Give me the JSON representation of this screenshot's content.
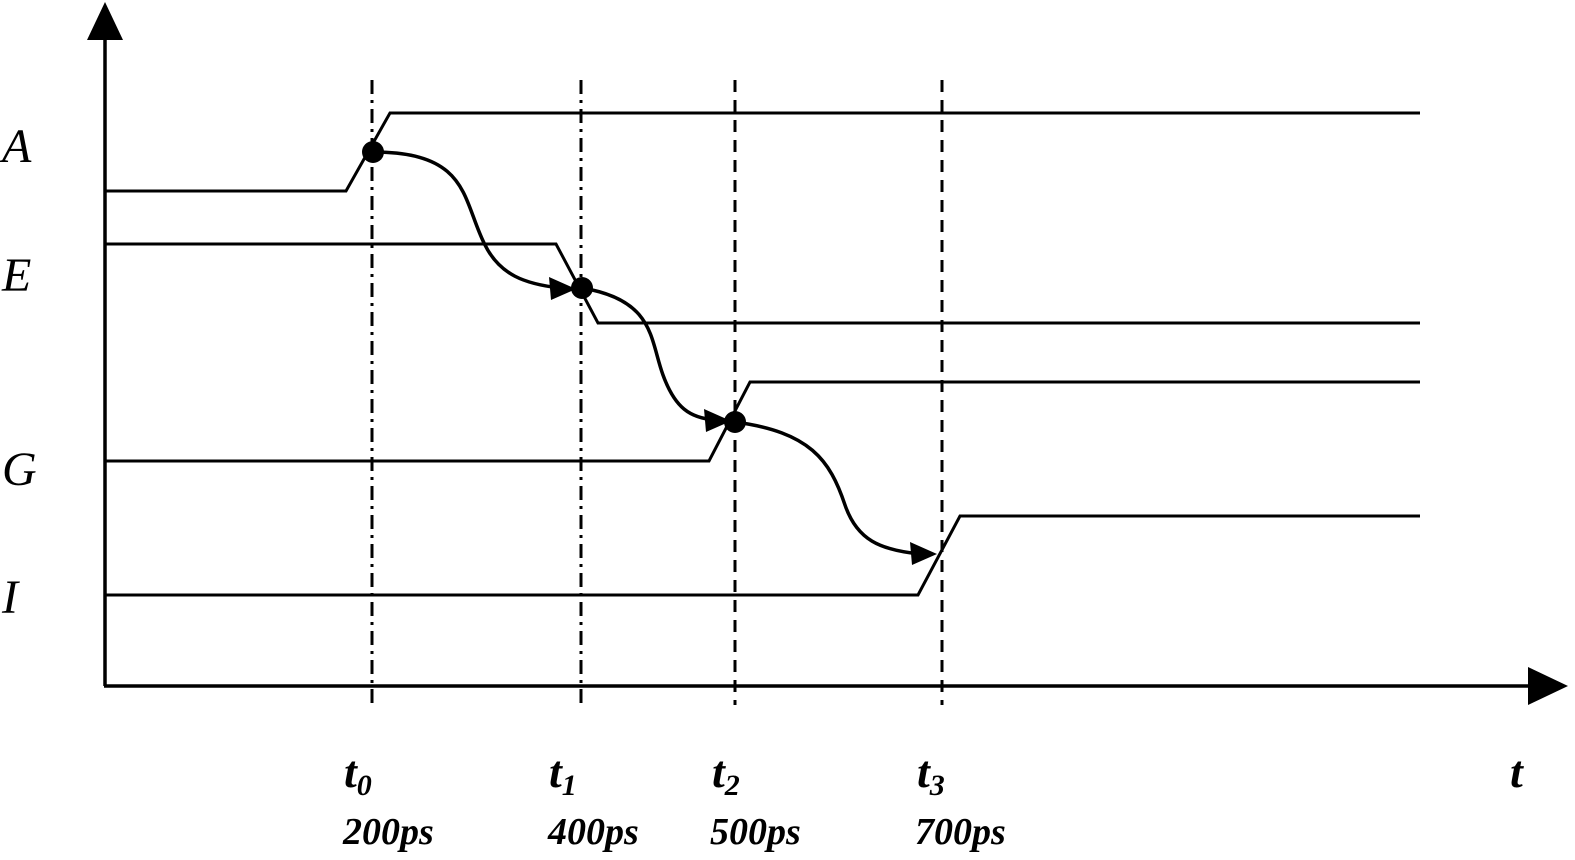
{
  "signals": [
    {
      "id": "A",
      "label": "A"
    },
    {
      "id": "E",
      "label": "E"
    },
    {
      "id": "G",
      "label": "G"
    },
    {
      "id": "I",
      "label": "I"
    }
  ],
  "axis": {
    "x_label": "t"
  },
  "time_markers": [
    {
      "symbol": "t",
      "sub": "0",
      "value": "200ps"
    },
    {
      "symbol": "t",
      "sub": "1",
      "value": "400ps"
    },
    {
      "symbol": "t",
      "sub": "2",
      "value": "500ps"
    },
    {
      "symbol": "t",
      "sub": "3",
      "value": "700ps"
    }
  ],
  "transitions": [
    {
      "signal": "A",
      "direction": "rise",
      "at": "t0"
    },
    {
      "signal": "E",
      "direction": "fall",
      "at": "t1"
    },
    {
      "signal": "G",
      "direction": "rise",
      "at": "t2"
    },
    {
      "signal": "I",
      "direction": "rise",
      "at": "t3"
    }
  ],
  "causality": [
    {
      "from": "A",
      "to": "E"
    },
    {
      "from": "E",
      "to": "G"
    },
    {
      "from": "G",
      "to": "I"
    }
  ]
}
